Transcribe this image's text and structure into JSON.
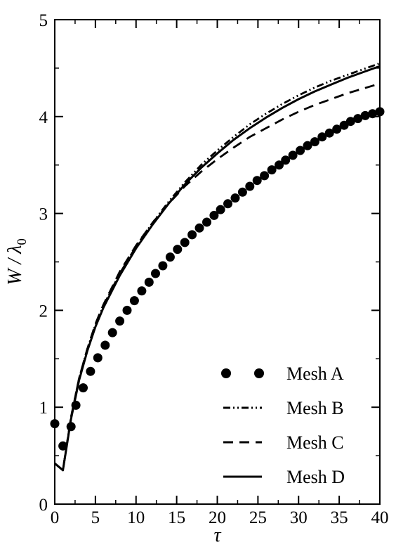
{
  "chart_data": {
    "type": "line",
    "xlabel": "τ",
    "ylabel": "W / λ0",
    "ylabel_parts": {
      "main": "W / λ",
      "sub": "0"
    },
    "xlim": [
      0,
      40
    ],
    "ylim": [
      0,
      5
    ],
    "x_ticks": [
      0,
      5,
      10,
      15,
      20,
      25,
      30,
      35,
      40
    ],
    "y_ticks": [
      0,
      1,
      2,
      3,
      4,
      5
    ],
    "grid": false,
    "legend_position": "bottom-right",
    "series": [
      {
        "name": "Mesh A",
        "style": "dots",
        "color": "#000000",
        "x": [
          0.0,
          1.0,
          2.0,
          2.6,
          3.5,
          4.4,
          5.3,
          6.2,
          7.1,
          8.0,
          8.9,
          9.8,
          10.7,
          11.6,
          12.4,
          13.3,
          14.2,
          15.1,
          16.0,
          16.9,
          17.8,
          18.7,
          19.6,
          20.4,
          21.3,
          22.2,
          23.1,
          24.0,
          24.9,
          25.8,
          26.7,
          27.6,
          28.4,
          29.3,
          30.2,
          31.1,
          32.0,
          32.9,
          33.8,
          34.7,
          35.6,
          36.4,
          37.3,
          38.2,
          39.1,
          40.0
        ],
        "y": [
          0.83,
          0.6,
          0.8,
          1.02,
          1.2,
          1.37,
          1.51,
          1.64,
          1.77,
          1.89,
          2.0,
          2.1,
          2.2,
          2.29,
          2.38,
          2.46,
          2.55,
          2.63,
          2.7,
          2.78,
          2.85,
          2.91,
          2.98,
          3.04,
          3.1,
          3.16,
          3.22,
          3.28,
          3.34,
          3.39,
          3.45,
          3.5,
          3.55,
          3.6,
          3.65,
          3.7,
          3.74,
          3.79,
          3.83,
          3.87,
          3.91,
          3.95,
          3.98,
          4.01,
          4.03,
          4.05
        ]
      },
      {
        "name": "Mesh B",
        "style": "dash-dot-dot",
        "color": "#000000",
        "x": [
          0.0,
          1.0,
          2.0,
          3.0,
          4.0,
          5.0,
          6.0,
          8.0,
          10.0,
          12.0,
          14.0,
          16.0,
          18.0,
          20.0,
          22.0,
          24.0,
          26.0,
          28.0,
          30.0,
          32.0,
          34.0,
          36.0,
          38.0,
          40.0
        ],
        "y": [
          0.42,
          0.35,
          0.9,
          1.3,
          1.6,
          1.85,
          2.05,
          2.38,
          2.66,
          2.9,
          3.12,
          3.32,
          3.5,
          3.65,
          3.79,
          3.92,
          4.03,
          4.13,
          4.22,
          4.3,
          4.37,
          4.43,
          4.49,
          4.55
        ]
      },
      {
        "name": "Mesh C",
        "style": "dashed",
        "color": "#000000",
        "x": [
          0.0,
          1.0,
          2.0,
          3.0,
          4.0,
          5.0,
          6.0,
          8.0,
          10.0,
          12.0,
          14.0,
          16.0,
          18.0,
          20.0,
          22.0,
          24.0,
          26.0,
          28.0,
          30.0,
          32.0,
          34.0,
          36.0,
          38.0,
          40.0
        ],
        "y": [
          0.42,
          0.35,
          0.9,
          1.3,
          1.6,
          1.86,
          2.06,
          2.4,
          2.67,
          2.9,
          3.1,
          3.28,
          3.43,
          3.56,
          3.68,
          3.79,
          3.88,
          3.97,
          4.05,
          4.12,
          4.18,
          4.24,
          4.29,
          4.34
        ]
      },
      {
        "name": "Mesh D",
        "style": "solid",
        "color": "#000000",
        "x": [
          0.0,
          1.0,
          2.0,
          3.0,
          4.0,
          5.0,
          6.0,
          8.0,
          10.0,
          12.0,
          14.0,
          16.0,
          18.0,
          20.0,
          22.0,
          24.0,
          26.0,
          28.0,
          30.0,
          32.0,
          34.0,
          36.0,
          38.0,
          40.0
        ],
        "y": [
          0.42,
          0.35,
          0.88,
          1.28,
          1.58,
          1.83,
          2.03,
          2.36,
          2.64,
          2.88,
          3.1,
          3.3,
          3.47,
          3.62,
          3.76,
          3.88,
          3.99,
          4.09,
          4.18,
          4.26,
          4.33,
          4.4,
          4.46,
          4.52
        ]
      }
    ]
  }
}
